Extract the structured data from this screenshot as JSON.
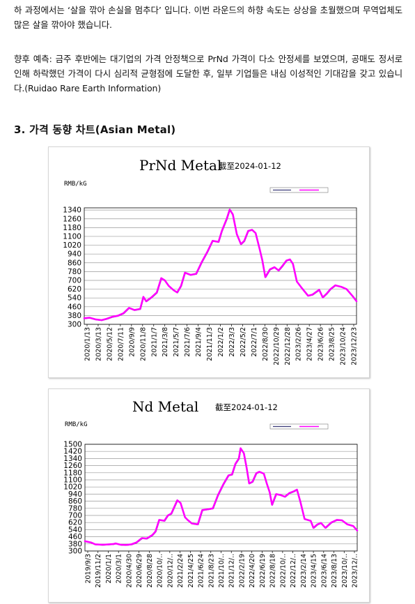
{
  "paragraphs": [
    "하 과정에서는 ‘살을 깎아 손실을 멈추다’ 입니다. 이번 라운드의 하향 속도는 상상을 초월했으며 무역업체도 많은 살을 깎아야 했습니다.",
    "향후 예측: 금주 후반에는 대기업의 가격 안정책으로 PrNd 가격이 다소 안정세를 보였으며, 공매도 정서로 인해 하락했던 가격이 다시 심리적 균형점에 도달한 후, 일부 기업들은 내심 이성적인 기대감을 갖고 있습니다.(Ruidao Rare Earth Information)"
  ],
  "section_heading": "3.  가격 동향 차트(Asian Metal)",
  "chart_data": [
    {
      "type": "line",
      "title": "PrNd Metal",
      "subtitle": "截至2024-01-12",
      "ylabel": "RMB/kG",
      "ylim": [
        300,
        1360
      ],
      "yticks": [
        300,
        380,
        460,
        540,
        620,
        700,
        780,
        860,
        940,
        1020,
        1100,
        1180,
        1260,
        1340
      ],
      "xticks": [
        "2020/1/13",
        "2020/3/13",
        "2020/5/12",
        "2020/7/11",
        "2020/9/9",
        "2020/11/8",
        "2021/1/7",
        "2021/3/8",
        "2021/5/7",
        "2021/7/6",
        "2021/9/4",
        "2021/11/3",
        "2022/1/2",
        "2022/3/3",
        "2022/5/2",
        "2022/7/1",
        "2022/8/30",
        "2022/10/29",
        "2022/12/28",
        "2023/2/26",
        "2023/4/27",
        "2023/6/26",
        "2023/8/25",
        "2023/10/24",
        "2023/12/23"
      ],
      "grid": true,
      "legend_position": "top-right",
      "series": [
        {
          "color": "#ff00ff",
          "points": [
            [
              "2020-01-13",
              355
            ],
            [
              "2020-02-10",
              360
            ],
            [
              "2020-03-13",
              345
            ],
            [
              "2020-04-15",
              338
            ],
            [
              "2020-05-12",
              350
            ],
            [
              "2020-06-10",
              368
            ],
            [
              "2020-07-11",
              378
            ],
            [
              "2020-08-10",
              400
            ],
            [
              "2020-09-09",
              450
            ],
            [
              "2020-10-08",
              430
            ],
            [
              "2020-11-08",
              440
            ],
            [
              "2020-11-25",
              550
            ],
            [
              "2020-12-10",
              510
            ],
            [
              "2021-01-07",
              545
            ],
            [
              "2021-02-05",
              590
            ],
            [
              "2021-03-01",
              720
            ],
            [
              "2021-03-20",
              700
            ],
            [
              "2021-04-10",
              650
            ],
            [
              "2021-05-07",
              610
            ],
            [
              "2021-05-25",
              590
            ],
            [
              "2021-06-15",
              650
            ],
            [
              "2021-07-06",
              770
            ],
            [
              "2021-08-05",
              750
            ],
            [
              "2021-09-04",
              760
            ],
            [
              "2021-10-05",
              870
            ],
            [
              "2021-11-03",
              960
            ],
            [
              "2021-12-01",
              1060
            ],
            [
              "2022-01-02",
              1050
            ],
            [
              "2022-01-20",
              1150
            ],
            [
              "2022-02-15",
              1260
            ],
            [
              "2022-03-03",
              1345
            ],
            [
              "2022-03-20",
              1300
            ],
            [
              "2022-04-10",
              1120
            ],
            [
              "2022-05-02",
              1030
            ],
            [
              "2022-05-20",
              1060
            ],
            [
              "2022-06-10",
              1150
            ],
            [
              "2022-07-01",
              1160
            ],
            [
              "2022-07-20",
              1130
            ],
            [
              "2022-08-10",
              990
            ],
            [
              "2022-08-25",
              880
            ],
            [
              "2022-09-10",
              730
            ],
            [
              "2022-10-05",
              800
            ],
            [
              "2022-10-29",
              820
            ],
            [
              "2022-11-20",
              790
            ],
            [
              "2022-12-10",
              830
            ],
            [
              "2023-01-01",
              880
            ],
            [
              "2023-01-20",
              890
            ],
            [
              "2023-02-05",
              850
            ],
            [
              "2023-02-26",
              690
            ],
            [
              "2023-03-20",
              640
            ],
            [
              "2023-04-27",
              560
            ],
            [
              "2023-05-20",
              570
            ],
            [
              "2023-06-26",
              615
            ],
            [
              "2023-07-15",
              545
            ],
            [
              "2023-08-05",
              580
            ],
            [
              "2023-08-25",
              620
            ],
            [
              "2023-09-20",
              655
            ],
            [
              "2023-10-24",
              640
            ],
            [
              "2023-11-20",
              620
            ],
            [
              "2023-12-23",
              555
            ],
            [
              "2024-01-12",
              510
            ]
          ]
        }
      ]
    },
    {
      "type": "line",
      "title": "Nd Metal",
      "subtitle": "截至2024-01-12",
      "ylabel": "RMB/kG",
      "ylim": [
        300,
        1500
      ],
      "yticks": [
        300,
        380,
        460,
        540,
        620,
        700,
        780,
        860,
        940,
        1020,
        1100,
        1180,
        1260,
        1340,
        1420,
        1500
      ],
      "xticks": [
        "2019/9/3",
        "2019/11/2",
        "2020/1/1",
        "2020/3/1",
        "2020/4/30",
        "2020/6/29",
        "2020/8/28",
        "2020/10/..",
        "2020/12/..",
        "2021/2/24",
        "2021/4/25",
        "2021/6/24",
        "2021/8/23",
        "2021/10/..",
        "2021/12/..",
        "2022/2/19",
        "2022/4/20",
        "2022/6/19",
        "2022/8/18",
        "2022/10/..",
        "2022/12/..",
        "2023/2/14",
        "2023/4/15",
        "2023/6/14",
        "2023/8/13",
        "2023/10/..",
        "2023/12/.."
      ],
      "grid": true,
      "legend_position": "top-right",
      "series": [
        {
          "color": "#ff00ff",
          "points": [
            [
              "2019-09-03",
              410
            ],
            [
              "2019-10-10",
              395
            ],
            [
              "2019-11-02",
              375
            ],
            [
              "2019-12-15",
              370
            ],
            [
              "2020-01-01",
              372
            ],
            [
              "2020-02-15",
              378
            ],
            [
              "2020-03-01",
              385
            ],
            [
              "2020-04-01",
              370
            ],
            [
              "2020-04-30",
              368
            ],
            [
              "2020-06-01",
              375
            ],
            [
              "2020-06-29",
              395
            ],
            [
              "2020-08-01",
              445
            ],
            [
              "2020-08-28",
              440
            ],
            [
              "2020-10-01",
              480
            ],
            [
              "2020-10-20",
              520
            ],
            [
              "2020-11-10",
              650
            ],
            [
              "2020-12-10",
              640
            ],
            [
              "2020-12-31",
              700
            ],
            [
              "2021-01-20",
              720
            ],
            [
              "2021-02-24",
              870
            ],
            [
              "2021-03-15",
              840
            ],
            [
              "2021-04-10",
              680
            ],
            [
              "2021-04-25",
              650
            ],
            [
              "2021-05-20",
              610
            ],
            [
              "2021-06-24",
              600
            ],
            [
              "2021-07-20",
              760
            ],
            [
              "2021-08-23",
              770
            ],
            [
              "2021-09-20",
              780
            ],
            [
              "2021-10-20",
              930
            ],
            [
              "2021-11-20",
              1050
            ],
            [
              "2021-12-20",
              1150
            ],
            [
              "2022-01-10",
              1160
            ],
            [
              "2022-01-30",
              1280
            ],
            [
              "2022-02-19",
              1340
            ],
            [
              "2022-03-01",
              1455
            ],
            [
              "2022-03-20",
              1400
            ],
            [
              "2022-04-05",
              1240
            ],
            [
              "2022-04-20",
              1060
            ],
            [
              "2022-05-10",
              1080
            ],
            [
              "2022-06-01",
              1175
            ],
            [
              "2022-06-19",
              1190
            ],
            [
              "2022-07-15",
              1170
            ],
            [
              "2022-08-01",
              1060
            ],
            [
              "2022-08-18",
              960
            ],
            [
              "2022-09-01",
              820
            ],
            [
              "2022-09-25",
              940
            ],
            [
              "2022-10-20",
              930
            ],
            [
              "2022-11-15",
              910
            ],
            [
              "2022-12-10",
              950
            ],
            [
              "2023-01-05",
              970
            ],
            [
              "2023-01-25",
              990
            ],
            [
              "2023-02-14",
              850
            ],
            [
              "2023-03-10",
              660
            ],
            [
              "2023-04-15",
              640
            ],
            [
              "2023-05-01",
              560
            ],
            [
              "2023-05-25",
              600
            ],
            [
              "2023-06-14",
              615
            ],
            [
              "2023-07-10",
              560
            ],
            [
              "2023-08-13",
              620
            ],
            [
              "2023-09-15",
              650
            ],
            [
              "2023-10-15",
              645
            ],
            [
              "2023-11-15",
              600
            ],
            [
              "2023-12-20",
              580
            ],
            [
              "2024-01-12",
              530
            ]
          ]
        }
      ]
    }
  ]
}
